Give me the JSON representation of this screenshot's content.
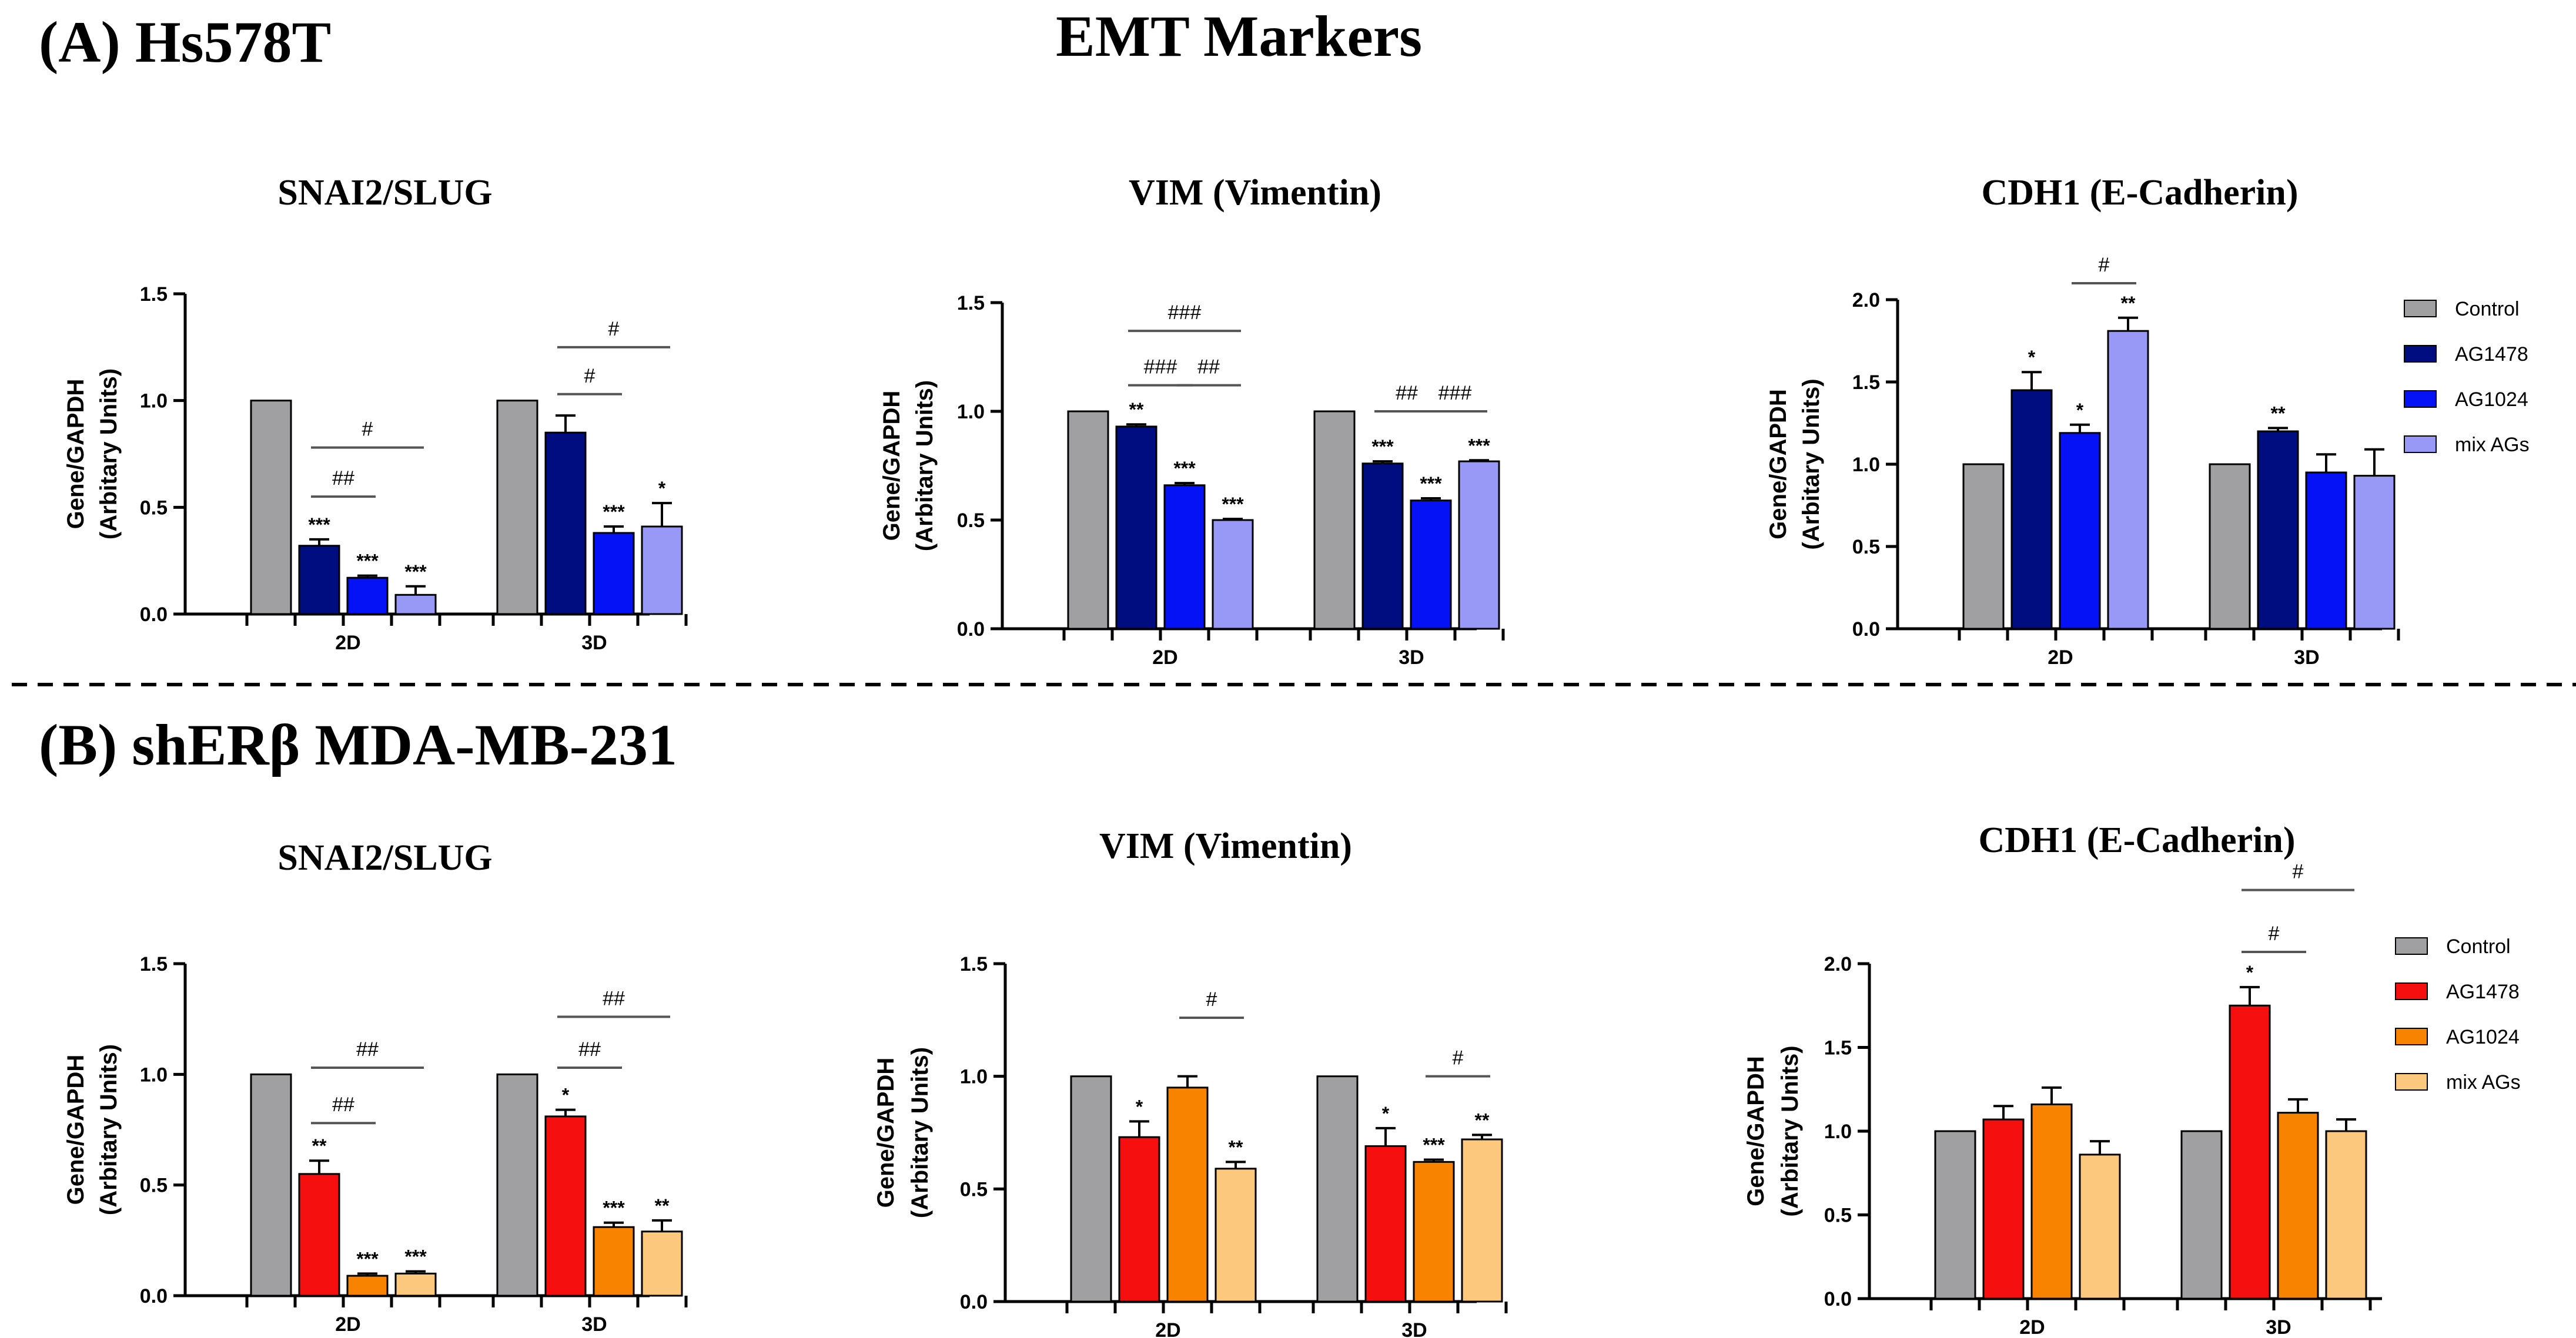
{
  "figure": {
    "title": "EMT Markers",
    "panel_a_label": "(A) Hs578T",
    "panel_b_label": "(B) shERβ MDA-MB-231"
  },
  "legend_a": {
    "entries": [
      "Control",
      "AG1478",
      "AG1024",
      "mix AGs"
    ],
    "colors": [
      "#a0a0a2",
      "#000d80",
      "#0512f5",
      "#9898f7"
    ]
  },
  "legend_b": {
    "entries": [
      "Control",
      "AG1478",
      "AG1024",
      "mix AGs"
    ],
    "colors": [
      "#a0a0a2",
      "#f50f0f",
      "#f88300",
      "#fcc87e"
    ]
  },
  "chart_data": [
    {
      "id": "a-slug",
      "panel": "A",
      "type": "bar",
      "title": "SNAI2/SLUG",
      "ylabel": [
        "Gene/GAPDH",
        "(Arbitary Units)"
      ],
      "ylim": [
        0,
        1.5
      ],
      "yticks": [
        "0.0",
        "0.5",
        "1.0",
        "1.5"
      ],
      "categories": [
        "2D",
        "3D"
      ],
      "series": [
        {
          "name": "Control",
          "values": [
            1.0,
            1.0
          ],
          "errors": [
            0,
            0
          ],
          "stars": [
            "",
            ""
          ]
        },
        {
          "name": "AG1478",
          "values": [
            0.32,
            0.85
          ],
          "errors": [
            0.03,
            0.08
          ],
          "stars": [
            "***",
            ""
          ]
        },
        {
          "name": "AG1024",
          "values": [
            0.17,
            0.38
          ],
          "errors": [
            0.01,
            0.03
          ],
          "stars": [
            "***",
            "***"
          ]
        },
        {
          "name": "mix AGs",
          "values": [
            0.09,
            0.41
          ],
          "errors": [
            0.04,
            0.11
          ],
          "stars": [
            "***",
            "*"
          ]
        }
      ],
      "comparisons": [
        {
          "cat": 0,
          "from": 1,
          "to": 2,
          "label": "##",
          "y": 0.55
        },
        {
          "cat": 0,
          "from": 1,
          "to": 3,
          "label": "#",
          "y": 0.78
        },
        {
          "cat": 1,
          "from": 1,
          "to": 2,
          "label": "#",
          "y": 1.03
        },
        {
          "cat": 1,
          "from": 1,
          "to": 3,
          "label": "#",
          "y": 1.25
        }
      ]
    },
    {
      "id": "a-vim",
      "panel": "A",
      "type": "bar",
      "title": "VIM (Vimentin)",
      "ylabel": [
        "Gene/GAPDH",
        "(Arbitary Units)"
      ],
      "ylim": [
        0,
        1.5
      ],
      "yticks": [
        "0.0",
        "0.5",
        "1.0",
        "1.5"
      ],
      "categories": [
        "2D",
        "3D"
      ],
      "series": [
        {
          "name": "Control",
          "values": [
            1.0,
            1.0
          ],
          "errors": [
            0,
            0
          ],
          "stars": [
            "",
            ""
          ]
        },
        {
          "name": "AG1478",
          "values": [
            0.93,
            0.76
          ],
          "errors": [
            0.01,
            0.01
          ],
          "stars": [
            "**",
            "***"
          ]
        },
        {
          "name": "AG1024",
          "values": [
            0.66,
            0.59
          ],
          "errors": [
            0.01,
            0.01
          ],
          "stars": [
            "***",
            "***"
          ]
        },
        {
          "name": "mix AGs",
          "values": [
            0.5,
            0.77
          ],
          "errors": [
            0.005,
            0.005
          ],
          "stars": [
            "***",
            "***"
          ]
        }
      ],
      "comparisons": [
        {
          "cat": 0,
          "from": 1,
          "to": 2,
          "label": "###",
          "y": 1.12
        },
        {
          "cat": 0,
          "from": 2,
          "to": 3,
          "label": "##",
          "y": 1.12
        },
        {
          "cat": 0,
          "from": 1,
          "to": 3,
          "label": "###",
          "y": 1.37
        },
        {
          "cat": 1,
          "from": 1,
          "to": 2,
          "label": "##",
          "y": 1.0
        },
        {
          "cat": 1,
          "from": 2,
          "to": 3,
          "label": "###",
          "y": 1.0
        }
      ]
    },
    {
      "id": "a-cdh1",
      "panel": "A",
      "type": "bar",
      "title": "CDH1 (E-Cadherin)",
      "ylabel": [
        "Gene/GAPDH",
        "(Arbitary Units)"
      ],
      "ylim": [
        0,
        2.0
      ],
      "yticks": [
        "0.0",
        "0.5",
        "1.0",
        "1.5",
        "2.0"
      ],
      "categories": [
        "2D",
        "3D"
      ],
      "series": [
        {
          "name": "Control",
          "values": [
            1.0,
            1.0
          ],
          "errors": [
            0,
            0
          ],
          "stars": [
            "",
            ""
          ]
        },
        {
          "name": "AG1478",
          "values": [
            1.45,
            1.2
          ],
          "errors": [
            0.11,
            0.02
          ],
          "stars": [
            "*",
            "**"
          ]
        },
        {
          "name": "AG1024",
          "values": [
            1.19,
            0.95
          ],
          "errors": [
            0.05,
            0.11
          ],
          "stars": [
            "*",
            ""
          ]
        },
        {
          "name": "mix AGs",
          "values": [
            1.81,
            0.93
          ],
          "errors": [
            0.08,
            0.16
          ],
          "stars": [
            "**",
            ""
          ]
        }
      ],
      "comparisons": [
        {
          "cat": 0,
          "from": 2,
          "to": 3,
          "label": "#",
          "y": 2.1
        }
      ]
    },
    {
      "id": "b-slug",
      "panel": "B",
      "type": "bar",
      "title": "SNAI2/SLUG",
      "ylabel": [
        "Gene/GAPDH",
        "(Arbitary Units)"
      ],
      "ylim": [
        0,
        1.5
      ],
      "yticks": [
        "0.0",
        "0.5",
        "1.0",
        "1.5"
      ],
      "categories": [
        "2D",
        "3D"
      ],
      "series": [
        {
          "name": "Control",
          "values": [
            1.0,
            1.0
          ],
          "errors": [
            0,
            0
          ],
          "stars": [
            "",
            ""
          ]
        },
        {
          "name": "AG1478",
          "values": [
            0.55,
            0.81
          ],
          "errors": [
            0.06,
            0.03
          ],
          "stars": [
            "**",
            "*"
          ]
        },
        {
          "name": "AG1024",
          "values": [
            0.09,
            0.31
          ],
          "errors": [
            0.01,
            0.02
          ],
          "stars": [
            "***",
            "***"
          ]
        },
        {
          "name": "mix AGs",
          "values": [
            0.1,
            0.29
          ],
          "errors": [
            0.01,
            0.05
          ],
          "stars": [
            "***",
            "**"
          ]
        }
      ],
      "comparisons": [
        {
          "cat": 0,
          "from": 1,
          "to": 2,
          "label": "##",
          "y": 0.78
        },
        {
          "cat": 0,
          "from": 1,
          "to": 3,
          "label": "##",
          "y": 1.03
        },
        {
          "cat": 1,
          "from": 1,
          "to": 2,
          "label": "##",
          "y": 1.03
        },
        {
          "cat": 1,
          "from": 1,
          "to": 3,
          "label": "##",
          "y": 1.26
        }
      ]
    },
    {
      "id": "b-vim",
      "panel": "B",
      "type": "bar",
      "title": "VIM (Vimentin)",
      "ylabel": [
        "Gene/GAPDH",
        "(Arbitary Units)"
      ],
      "ylim": [
        0,
        1.5
      ],
      "yticks": [
        "0.0",
        "0.5",
        "1.0",
        "1.5"
      ],
      "categories": [
        "2D",
        "3D"
      ],
      "series": [
        {
          "name": "Control",
          "values": [
            1.0,
            1.0
          ],
          "errors": [
            0,
            0
          ],
          "stars": [
            "",
            ""
          ]
        },
        {
          "name": "AG1478",
          "values": [
            0.73,
            0.69
          ],
          "errors": [
            0.07,
            0.08
          ],
          "stars": [
            "*",
            "*"
          ]
        },
        {
          "name": "AG1024",
          "values": [
            0.95,
            0.62
          ],
          "errors": [
            0.05,
            0.01
          ],
          "stars": [
            "",
            "***"
          ]
        },
        {
          "name": "mix AGs",
          "values": [
            0.59,
            0.72
          ],
          "errors": [
            0.03,
            0.02
          ],
          "stars": [
            "**",
            "**"
          ]
        }
      ],
      "comparisons": [
        {
          "cat": 0,
          "from": 2,
          "to": 3,
          "label": "#",
          "y": 1.26
        },
        {
          "cat": 1,
          "from": 2,
          "to": 3,
          "label": "#",
          "y": 1.0
        }
      ]
    },
    {
      "id": "b-cdh1",
      "panel": "B",
      "type": "bar",
      "title": "CDH1 (E-Cadherin)",
      "ylabel": [
        "Gene/GAPDH",
        "(Arbitary Units)"
      ],
      "ylim": [
        0,
        2.0
      ],
      "yticks": [
        "0.0",
        "0.5",
        "1.0",
        "1.5",
        "2.0"
      ],
      "categories": [
        "2D",
        "3D"
      ],
      "series": [
        {
          "name": "Control",
          "values": [
            1.0,
            1.0
          ],
          "errors": [
            0,
            0
          ],
          "stars": [
            "",
            ""
          ]
        },
        {
          "name": "AG1478",
          "values": [
            1.07,
            1.75
          ],
          "errors": [
            0.08,
            0.11
          ],
          "stars": [
            "",
            "*"
          ]
        },
        {
          "name": "AG1024",
          "values": [
            1.16,
            1.11
          ],
          "errors": [
            0.1,
            0.08
          ],
          "stars": [
            "",
            ""
          ]
        },
        {
          "name": "mix AGs",
          "values": [
            0.86,
            1.0
          ],
          "errors": [
            0.08,
            0.07
          ],
          "stars": [
            "",
            ""
          ]
        }
      ],
      "comparisons": [
        {
          "cat": 1,
          "from": 1,
          "to": 2,
          "label": "#",
          "y": 2.07
        },
        {
          "cat": 1,
          "from": 1,
          "to": 3,
          "label": "#",
          "y": 2.44
        }
      ]
    }
  ]
}
